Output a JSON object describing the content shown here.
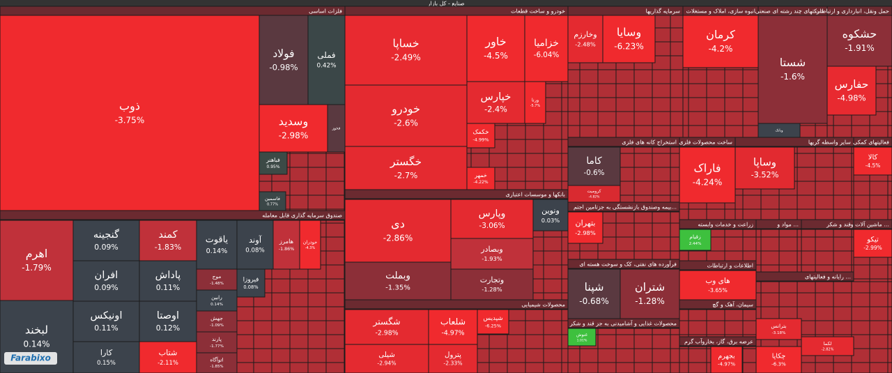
{
  "title": "صنایع - کل بازار",
  "watermark": "Farabixo",
  "sectors": [
    {
      "title": "فلزات اساسی",
      "tiles": [
        {
          "name": "ذوب",
          "change": "-3.75%"
        },
        {
          "name": "فولاد",
          "change": "-0.98%"
        },
        {
          "name": "فملی",
          "change": "0.42%"
        },
        {
          "name": "وسدید",
          "change": "-2.98%"
        },
        {
          "name": "فخوز"
        },
        {
          "name": "فباهنر",
          "change": "0.95%"
        },
        {
          "name": "فاسمین",
          "change": "0.77%"
        }
      ]
    },
    {
      "title": "صندوق سرمایه گذاری قابل معامله",
      "tiles": [
        {
          "name": "اهرم",
          "change": "-1.79%"
        },
        {
          "name": "لبخند",
          "change": "0.14%"
        },
        {
          "name": "گنجینه",
          "change": "0.09%"
        },
        {
          "name": "افران",
          "change": "0.09%"
        },
        {
          "name": "اونیکس",
          "change": "0.11%"
        },
        {
          "name": "کارا",
          "change": "0.15%"
        },
        {
          "name": "کمند",
          "change": "-1.83%"
        },
        {
          "name": "پاداش",
          "change": "0.11%"
        },
        {
          "name": "اوصتا",
          "change": "0.12%"
        },
        {
          "name": "شتاب",
          "change": "-2.11%"
        },
        {
          "name": "یاقوت",
          "change": "0.14%"
        },
        {
          "name": "آوند",
          "change": "0.08%"
        },
        {
          "name": "موج",
          "change": "-1.48%"
        },
        {
          "name": "رابین",
          "change": "0.14%"
        },
        {
          "name": "جهش",
          "change": "-1.09%"
        },
        {
          "name": "پارند",
          "change": "-1.77%"
        },
        {
          "name": "اتوآگاه",
          "change": "-1.85%"
        },
        {
          "name": "فیروزا",
          "change": "0.08%"
        },
        {
          "name": "هامرز",
          "change": "-1.86%"
        },
        {
          "name": "خودران",
          "change": "-4.3%"
        }
      ]
    },
    {
      "title": "خودرو و ساخت قطعات",
      "tiles": [
        {
          "name": "خساپا",
          "change": "-2.49%"
        },
        {
          "name": "خودرو",
          "change": "-2.6%"
        },
        {
          "name": "خگستر",
          "change": "-2.7%"
        },
        {
          "name": "خاور",
          "change": "-4.5%"
        },
        {
          "name": "خزامیا",
          "change": "-6.04%"
        },
        {
          "name": "خپارس",
          "change": "-2.4%"
        },
        {
          "name": "خکمک",
          "change": "-4.99%"
        },
        {
          "name": "خمهر",
          "change": "-4.22%"
        },
        {
          "name": "ورنا",
          "change": "-5.7%"
        }
      ]
    },
    {
      "title": "بانکها و موسسات اعتباری",
      "tiles": [
        {
          "name": "دی",
          "change": "-2.86%"
        },
        {
          "name": "وبملت",
          "change": "-1.35%"
        },
        {
          "name": "وپارس",
          "change": "-3.06%"
        },
        {
          "name": "وبصادر",
          "change": "-1.93%"
        },
        {
          "name": "وتجارت",
          "change": "-1.28%"
        },
        {
          "name": "ونوین",
          "change": "0.03%"
        }
      ]
    },
    {
      "title": "محصولات شیمیایی",
      "tiles": [
        {
          "name": "شگستر",
          "change": "-2.98%"
        },
        {
          "name": "شیلی",
          "change": "-2.94%"
        },
        {
          "name": "شلعاب",
          "change": "-4.97%"
        },
        {
          "name": "پترول",
          "change": "-2.33%"
        },
        {
          "name": "شپدیس",
          "change": "-6.25%"
        }
      ]
    },
    {
      "title": "سرمایه گذاریها",
      "tiles": [
        {
          "name": "وخارزم",
          "change": "-2.48%"
        },
        {
          "name": "وسایا",
          "change": "-6.23%"
        }
      ]
    },
    {
      "title": "انبوه سازی، املاک و مستغلات",
      "tiles": [
        {
          "name": "کرمان",
          "change": "-4.2%"
        }
      ]
    },
    {
      "title": "شرکتهای چند رشته ای صنعتی",
      "tiles": [
        {
          "name": "شستا",
          "change": "-1.6%"
        },
        {
          "name": "وبانک"
        }
      ]
    },
    {
      "title": "حمل ونقل، انبارداری و ارتباطات",
      "tiles": [
        {
          "name": "حشکوه",
          "change": "-1.91%"
        },
        {
          "name": "حفارس",
          "change": "-4.98%"
        }
      ]
    },
    {
      "title": "استخراج کانه های فلزی",
      "tiles": [
        {
          "name": "کاما",
          "change": "-0.6%"
        },
        {
          "name": "کرومیت",
          "change": "-4.82%"
        }
      ]
    },
    {
      "title": "ساخت محصولات فلزی",
      "tiles": [
        {
          "name": "فاراک",
          "change": "-4.24%"
        }
      ]
    },
    {
      "title": "سایر واسطه گریها",
      "tiles": [
        {
          "name": "وساپا",
          "change": "-3.52%"
        }
      ]
    },
    {
      "title": "فعالیتهای کمکی",
      "tiles": [
        {
          "name": "کالا",
          "change": "-4.5%"
        }
      ]
    },
    {
      "title": "بیمه وصندوق بازنشستگی به جزتامین اجتم...",
      "tiles": [
        {
          "name": "بتهران",
          "change": "-2.98%"
        }
      ]
    },
    {
      "title": "فرآورده های نفتی، کک و سوخت هسته ای",
      "tiles": [
        {
          "name": "شپنا",
          "change": "-0.68%"
        },
        {
          "name": "شتران",
          "change": "-1.28%"
        }
      ]
    },
    {
      "title": "محصولات غذایی و آشامیدنی به جز قند و شکر",
      "tiles": [
        {
          "name": "غنوش",
          "change": "1.01%"
        }
      ]
    },
    {
      "title": "زراعت و خدمات وابسته",
      "tiles": [
        {
          "name": "زقیام",
          "change": "2.44%"
        }
      ]
    },
    {
      "title": "اطلاعات و ارتباطات",
      "tiles": [
        {
          "name": "های وب",
          "change": "-3.65%"
        }
      ]
    },
    {
      "title": "سیمان، آهک و گچ",
      "tiles": []
    },
    {
      "title": "عرضه برق، گاز، بخاروآب گرم",
      "tiles": [
        {
          "name": "بجهرم",
          "change": "-4.97%"
        }
      ]
    },
    {
      "title": "مواد و ...",
      "tiles": []
    },
    {
      "title": "قند و شکر",
      "tiles": []
    },
    {
      "title": "ماشین آلات و ...",
      "tiles": [
        {
          "name": "تیکو",
          "change": "-2.99%"
        }
      ]
    },
    {
      "title": "رایانه و فعالیتهای ...",
      "tiles": [
        {
          "name": "بترانس",
          "change": "-3.18%"
        },
        {
          "name": "لکما",
          "change": "-2.82%"
        },
        {
          "name": "چکاپا",
          "change": "-6.3%"
        }
      ]
    }
  ]
}
